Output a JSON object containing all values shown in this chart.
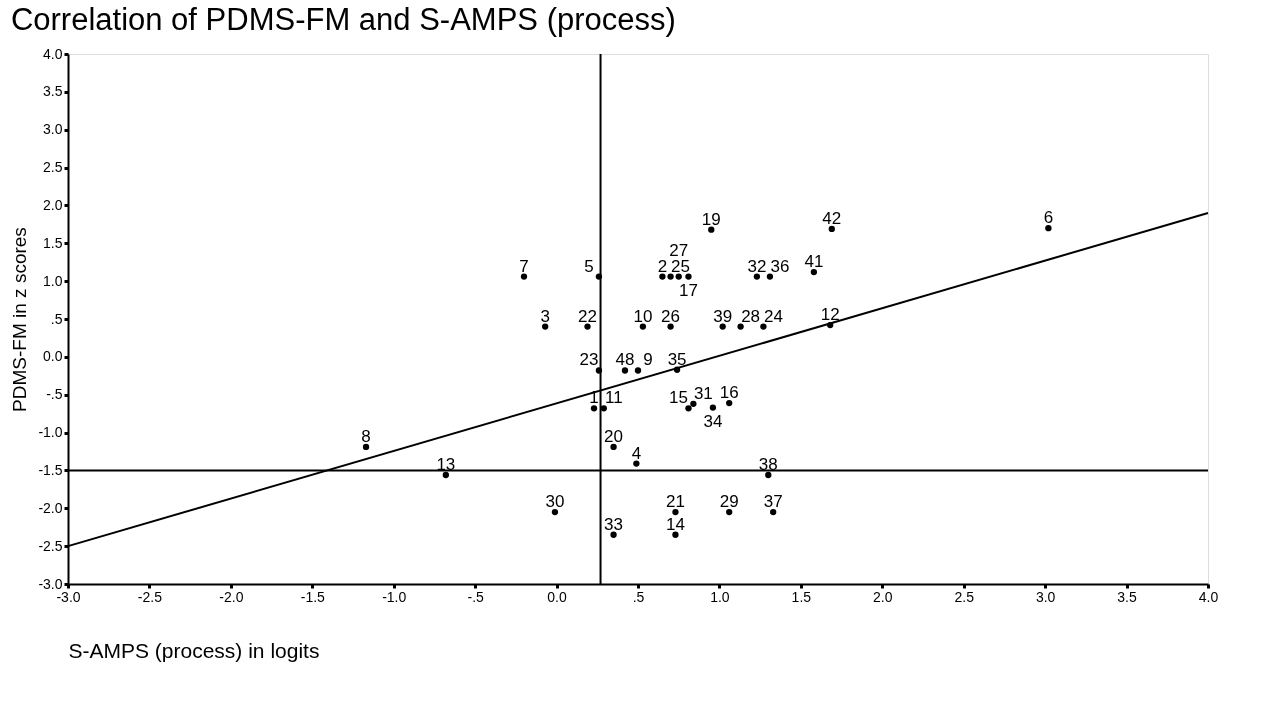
{
  "chart_data": {
    "type": "scatter",
    "title": "Correlation of PDMS-FM and S-AMPS (process)",
    "xlabel": "S-AMPS (process) in logits",
    "ylabel": "PDMS-FM in z scores",
    "xlim": [
      -3.0,
      4.0
    ],
    "ylim": [
      -3.0,
      4.0
    ],
    "xticks": [
      {
        "value": -3.0,
        "label": "-3.0"
      },
      {
        "value": -2.5,
        "label": "-2.5"
      },
      {
        "value": -2.0,
        "label": "-2.0"
      },
      {
        "value": -1.5,
        "label": "-1.5"
      },
      {
        "value": -1.0,
        "label": "-1.0"
      },
      {
        "value": -0.5,
        "label": "-.5"
      },
      {
        "value": 0.0,
        "label": "0.0"
      },
      {
        "value": 0.5,
        "label": ".5"
      },
      {
        "value": 1.0,
        "label": "1.0"
      },
      {
        "value": 1.5,
        "label": "1.5"
      },
      {
        "value": 2.0,
        "label": "2.0"
      },
      {
        "value": 2.5,
        "label": "2.5"
      },
      {
        "value": 3.0,
        "label": "3.0"
      },
      {
        "value": 3.5,
        "label": "3.5"
      },
      {
        "value": 4.0,
        "label": "4.0"
      }
    ],
    "yticks": [
      {
        "value": -3.0,
        "label": "-3.0"
      },
      {
        "value": -2.5,
        "label": "-2.5"
      },
      {
        "value": -2.0,
        "label": "-2.0"
      },
      {
        "value": -1.5,
        "label": "-1.5"
      },
      {
        "value": -1.0,
        "label": "-1.0"
      },
      {
        "value": -0.5,
        "label": "-.5"
      },
      {
        "value": 0.0,
        "label": "0.0"
      },
      {
        "value": 0.5,
        "label": ".5"
      },
      {
        "value": 1.0,
        "label": "1.0"
      },
      {
        "value": 1.5,
        "label": "1.5"
      },
      {
        "value": 2.0,
        "label": "2.0"
      },
      {
        "value": 2.5,
        "label": "2.5"
      },
      {
        "value": 3.0,
        "label": "3.0"
      },
      {
        "value": 3.5,
        "label": "3.5"
      },
      {
        "value": 4.0,
        "label": "4.0"
      }
    ],
    "grid": false,
    "legend": false,
    "series": [
      {
        "marker": "circle",
        "color": "#000000",
        "x": [
          -0.2,
          0.26,
          0.65,
          0.7,
          0.75,
          0.81,
          -0.07,
          0.19,
          0.53,
          0.7,
          1.02,
          1.13,
          1.27,
          1.68,
          1.23,
          1.31,
          1.58,
          0.95,
          1.69,
          3.02,
          0.26,
          0.42,
          0.5,
          0.74,
          0.23,
          0.29,
          0.81,
          0.84,
          0.96,
          1.06,
          0.35,
          0.49,
          1.3,
          -0.01,
          1.06,
          1.33,
          0.35,
          0.73,
          0.73,
          -1.17,
          -0.68
        ],
        "values": [
          1.06,
          1.06,
          1.06,
          1.06,
          1.06,
          1.06,
          0.4,
          0.4,
          0.4,
          0.4,
          0.4,
          0.4,
          0.4,
          0.42,
          1.06,
          1.06,
          1.12,
          1.68,
          1.69,
          1.7,
          -0.18,
          -0.18,
          -0.18,
          -0.17,
          -0.68,
          -0.68,
          -0.68,
          -0.62,
          -0.67,
          -0.61,
          -1.19,
          -1.41,
          -1.56,
          -2.05,
          -2.05,
          -2.05,
          -2.35,
          -2.35,
          -2.05,
          -1.19,
          -1.56
        ]
      },
      {
        "type": "line",
        "color": "#000000",
        "x": [
          -3.0,
          4.0
        ],
        "values": [
          -2.5,
          1.9
        ]
      }
    ],
    "ref_lines": [
      {
        "axis": "x",
        "value": 0.27,
        "color": "#000000"
      },
      {
        "axis": "y",
        "value": -1.5,
        "color": "#000000"
      }
    ],
    "annotations": [
      {
        "text": "7",
        "x": -0.2,
        "y": 1.06
      },
      {
        "text": "5",
        "x": 0.26,
        "y": 1.06
      },
      {
        "text": "2",
        "x": 0.65,
        "y": 1.06
      },
      {
        "text": "25",
        "x": 0.7,
        "y": 1.06
      },
      {
        "text": "27",
        "x": 0.75,
        "y": 1.06
      },
      {
        "text": "17",
        "x": 0.81,
        "y": 1.06
      },
      {
        "text": "3",
        "x": -0.07,
        "y": 0.4
      },
      {
        "text": "22",
        "x": 0.19,
        "y": 0.4
      },
      {
        "text": "10",
        "x": 0.53,
        "y": 0.4
      },
      {
        "text": "26",
        "x": 0.7,
        "y": 0.4
      },
      {
        "text": "39",
        "x": 1.02,
        "y": 0.4
      },
      {
        "text": "28",
        "x": 1.13,
        "y": 0.4
      },
      {
        "text": "24",
        "x": 1.27,
        "y": 0.4
      },
      {
        "text": "12",
        "x": 1.68,
        "y": 0.42
      },
      {
        "text": "32",
        "x": 1.23,
        "y": 1.06
      },
      {
        "text": "36",
        "x": 1.31,
        "y": 1.06
      },
      {
        "text": "41",
        "x": 1.58,
        "y": 1.12
      },
      {
        "text": "19",
        "x": 0.95,
        "y": 1.68
      },
      {
        "text": "42",
        "x": 1.69,
        "y": 1.69
      },
      {
        "text": "6",
        "x": 3.02,
        "y": 1.7
      },
      {
        "text": "23",
        "x": 0.26,
        "y": -0.18
      },
      {
        "text": "48",
        "x": 0.42,
        "y": -0.18
      },
      {
        "text": "9",
        "x": 0.5,
        "y": -0.18
      },
      {
        "text": "35",
        "x": 0.74,
        "y": -0.17
      },
      {
        "text": "1",
        "x": 0.23,
        "y": -0.68
      },
      {
        "text": "11",
        "x": 0.29,
        "y": -0.68
      },
      {
        "text": "15",
        "x": 0.81,
        "y": -0.68
      },
      {
        "text": "31",
        "x": 0.84,
        "y": -0.62
      },
      {
        "text": "34",
        "x": 0.96,
        "y": -0.67
      },
      {
        "text": "16",
        "x": 1.06,
        "y": -0.61
      },
      {
        "text": "20",
        "x": 0.35,
        "y": -1.19
      },
      {
        "text": "4",
        "x": 0.49,
        "y": -1.41
      },
      {
        "text": "38",
        "x": 1.3,
        "y": -1.56
      },
      {
        "text": "30",
        "x": -0.01,
        "y": -2.05
      },
      {
        "text": "29",
        "x": 1.06,
        "y": -2.05
      },
      {
        "text": "37",
        "x": 1.33,
        "y": -2.05
      },
      {
        "text": "33",
        "x": 0.35,
        "y": -2.35
      },
      {
        "text": "14",
        "x": 0.73,
        "y": -2.35
      },
      {
        "text": "21",
        "x": 0.73,
        "y": -2.05
      },
      {
        "text": "8",
        "x": -1.17,
        "y": -1.19
      },
      {
        "text": "13",
        "x": -0.68,
        "y": -1.56
      }
    ]
  }
}
